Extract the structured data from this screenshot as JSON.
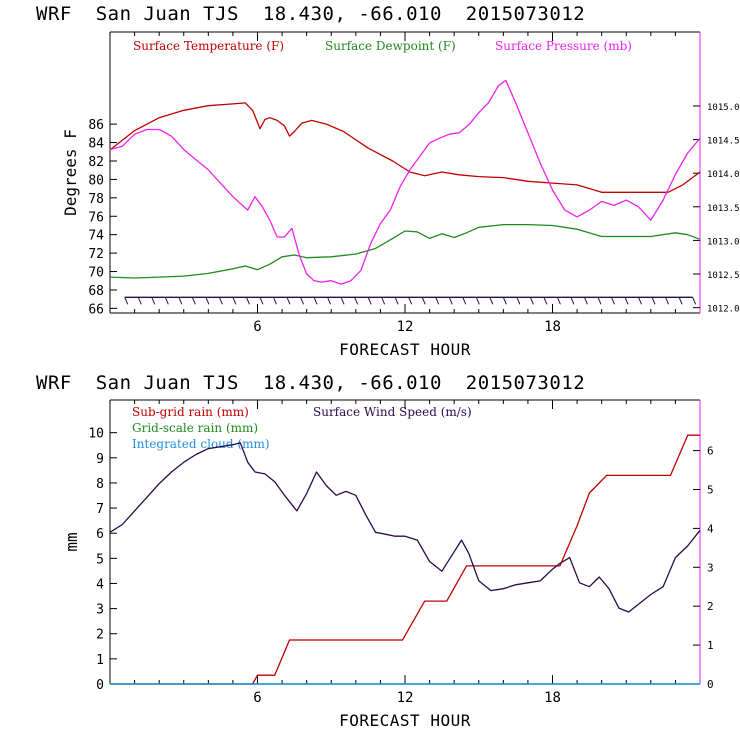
{
  "titles": {
    "top": "WRF  San Juan TJS  18.430, -66.010  2015073012",
    "bottom": "WRF  San Juan TJS  18.430, -66.010  2015073012"
  },
  "chart_data": [
    {
      "type": "line",
      "title": "WRF  San Juan TJS  18.430, -66.010  2015073012",
      "xlabel": "FORECAST HOUR",
      "ylabel": "Degrees F",
      "xlim": [
        0,
        24
      ],
      "ylim": [
        65.5,
        96
      ],
      "y2lim": [
        1011.92,
        1016.1
      ],
      "xticks": [
        6,
        12,
        18
      ],
      "xtick_labels": [
        "6",
        "12",
        "18"
      ],
      "yticks": [
        66,
        68,
        70,
        72,
        74,
        76,
        78,
        80,
        82,
        84,
        86
      ],
      "ytick_labels": [
        "66",
        "68",
        "70",
        "72",
        "74",
        "76",
        "78",
        "80",
        "82",
        "84",
        "86"
      ],
      "y2ticks": [
        1012.0,
        1012.5,
        1013.0,
        1013.5,
        1014.0,
        1014.5,
        1015.0
      ],
      "y2tick_labels": [
        "1012.0",
        "1012.5",
        "1013.0",
        "1013.5",
        "1014.0",
        "1014.5",
        "1015.0"
      ],
      "legend": "top",
      "colors": {
        "temp": "#c00000",
        "dew": "#1f8a1f",
        "pres": "#ee22ee",
        "barb": "#2a0a4a"
      },
      "series": [
        {
          "name": "Surface Temperature (F)",
          "axis": "left",
          "x": [
            0,
            1,
            2,
            3,
            4,
            5,
            5.5,
            5.8,
            6.1,
            6.3,
            6.5,
            6.8,
            7.1,
            7.3,
            7.5,
            7.8,
            8.2,
            8.8,
            9.5,
            10.5,
            11.5,
            12.2,
            12.8,
            13.5,
            14.2,
            15,
            16,
            17,
            18,
            19,
            20,
            21,
            22,
            22.7,
            23.3,
            24
          ],
          "y": [
            83.2,
            85.3,
            86.7,
            87.5,
            88,
            88.2,
            88.3,
            87.5,
            85.5,
            86.5,
            86.7,
            86.4,
            85.8,
            84.7,
            85.2,
            86.1,
            86.4,
            86,
            85.2,
            83.4,
            82,
            80.8,
            80.4,
            80.8,
            80.5,
            80.3,
            80.2,
            79.8,
            79.6,
            79.4,
            78.6,
            78.6,
            78.6,
            78.6,
            79.4,
            80.8
          ]
        },
        {
          "name": "Surface Dewpoint (F)",
          "axis": "left",
          "x": [
            0,
            1,
            2,
            3,
            4,
            5,
            5.5,
            6,
            6.5,
            7,
            7.5,
            8,
            9,
            10,
            10.8,
            11.5,
            12,
            12.5,
            13,
            13.5,
            14,
            14.5,
            15,
            16,
            17,
            18,
            19,
            20,
            21,
            22,
            23,
            23.5,
            24
          ],
          "y": [
            69.4,
            69.3,
            69.4,
            69.5,
            69.8,
            70.3,
            70.6,
            70.2,
            70.8,
            71.6,
            71.8,
            71.5,
            71.6,
            71.9,
            72.5,
            73.6,
            74.4,
            74.3,
            73.6,
            74.1,
            73.7,
            74.2,
            74.8,
            75.1,
            75.1,
            75.0,
            74.6,
            73.8,
            73.8,
            73.8,
            74.2,
            74,
            73.5
          ]
        },
        {
          "name": "Surface Pressure (mb)",
          "axis": "right",
          "x": [
            0,
            0.5,
            1,
            1.5,
            2,
            2.5,
            3,
            3.5,
            4,
            4.5,
            5,
            5.3,
            5.6,
            5.9,
            6.2,
            6.5,
            6.8,
            7.1,
            7.4,
            7.7,
            8,
            8.3,
            8.6,
            9,
            9.4,
            9.8,
            10.2,
            10.6,
            11,
            11.4,
            11.8,
            12.2,
            12.6,
            13,
            13.4,
            13.8,
            14.2,
            14.6,
            15,
            15.4,
            15.8,
            16.1,
            16.5,
            17,
            17.5,
            18,
            18.5,
            19,
            19.5,
            20,
            20.5,
            21,
            21.5,
            22,
            22.5,
            23,
            23.5,
            24
          ],
          "y": [
            1014.35,
            1014.4,
            1014.58,
            1014.65,
            1014.65,
            1014.55,
            1014.35,
            1014.2,
            1014.05,
            1013.85,
            1013.65,
            1013.55,
            1013.45,
            1013.65,
            1013.5,
            1013.3,
            1013.05,
            1013.05,
            1013.18,
            1012.78,
            1012.5,
            1012.4,
            1012.38,
            1012.4,
            1012.35,
            1012.4,
            1012.55,
            1012.95,
            1013.25,
            1013.45,
            1013.8,
            1014.05,
            1014.25,
            1014.45,
            1014.52,
            1014.58,
            1014.6,
            1014.72,
            1014.9,
            1015.05,
            1015.3,
            1015.38,
            1015.05,
            1014.6,
            1014.15,
            1013.75,
            1013.45,
            1013.35,
            1013.45,
            1013.58,
            1013.52,
            1013.6,
            1013.5,
            1013.3,
            1013.6,
            1013.98,
            1014.3,
            1014.52
          ]
        }
      ],
      "wind_barbs": {
        "name": "Wind barbs",
        "y": 67.2,
        "x_start": 0.6,
        "x_end": 23.7,
        "spacing": 0.55
      }
    },
    {
      "type": "line",
      "title": "WRF  San Juan TJS  18.430, -66.010  2015073012",
      "xlabel": "FORECAST HOUR",
      "ylabel": "mm",
      "xlim": [
        0,
        24
      ],
      "ylim": [
        0,
        11.3
      ],
      "y2lim": [
        0,
        7.3
      ],
      "xticks": [
        6,
        12,
        18
      ],
      "xtick_labels": [
        "6",
        "12",
        "18"
      ],
      "yticks": [
        0,
        1,
        2,
        3,
        4,
        5,
        6,
        7,
        8,
        9,
        10
      ],
      "ytick_labels": [
        "0",
        "1",
        "2",
        "3",
        "4",
        "5",
        "6",
        "7",
        "8",
        "9",
        "10"
      ],
      "y2ticks": [
        0,
        1,
        2,
        3,
        4,
        5,
        6
      ],
      "y2tick_labels": [
        "0",
        "1",
        "2",
        "3",
        "4",
        "5",
        "6"
      ],
      "legend": "top-left",
      "colors": {
        "subgrid": "#c00000",
        "grid": "#1f8a1f",
        "cloud": "#1f8fdf",
        "wind": "#2a0a4a"
      },
      "series": [
        {
          "name": "Sub-grid rain (mm)",
          "axis": "left",
          "x": [
            0,
            5.8,
            6,
            6.7,
            7.3,
            11.9,
            12.8,
            13.7,
            14.5,
            18.3,
            19,
            19.5,
            20.2,
            22.8,
            23.5,
            24
          ],
          "y": [
            0,
            0,
            0.35,
            0.35,
            1.75,
            1.75,
            3.3,
            3.3,
            4.7,
            4.7,
            6.3,
            7.6,
            8.3,
            8.3,
            9.9,
            9.9
          ]
        },
        {
          "name": "Grid-scale rain (mm)",
          "axis": "left",
          "x": [
            0,
            24
          ],
          "y": [
            0,
            0
          ]
        },
        {
          "name": "Integrated cloud (mm)",
          "axis": "left",
          "x": [
            0,
            24
          ],
          "y": [
            0,
            0
          ]
        },
        {
          "name": "Surface Wind Speed (m/s)",
          "axis": "right",
          "x": [
            0,
            0.5,
            1,
            1.5,
            2,
            2.5,
            3,
            3.5,
            4,
            4.5,
            5,
            5.3,
            5.6,
            5.9,
            6.3,
            6.7,
            7.1,
            7.6,
            8,
            8.4,
            8.8,
            9.2,
            9.6,
            10,
            10.4,
            10.8,
            11.2,
            11.6,
            12,
            12.5,
            13,
            13.5,
            14,
            14.3,
            14.6,
            15,
            15.5,
            16,
            16.5,
            17,
            17.5,
            18,
            18.3,
            18.7,
            19.1,
            19.5,
            19.9,
            20.3,
            20.7,
            21.1,
            21.5,
            22,
            22.5,
            23,
            23.5,
            24
          ],
          "y": [
            3.9,
            4.1,
            4.45,
            4.8,
            5.15,
            5.45,
            5.7,
            5.9,
            6.05,
            6.1,
            6.15,
            6.2,
            5.7,
            5.45,
            5.4,
            5.2,
            4.85,
            4.45,
            4.9,
            5.45,
            5.1,
            4.85,
            4.95,
            4.85,
            4.35,
            3.9,
            3.85,
            3.8,
            3.8,
            3.7,
            3.15,
            2.9,
            3.4,
            3.7,
            3.35,
            2.65,
            2.4,
            2.45,
            2.55,
            2.6,
            2.65,
            2.95,
            3.1,
            3.25,
            2.6,
            2.5,
            2.75,
            2.45,
            1.95,
            1.85,
            2.05,
            2.3,
            2.5,
            3.25,
            3.55,
            3.95
          ]
        }
      ]
    }
  ]
}
